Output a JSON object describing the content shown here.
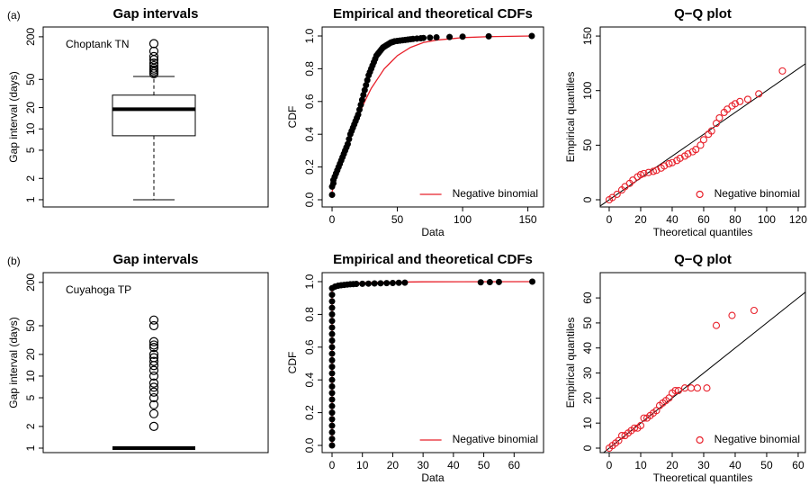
{
  "chart_data": [
    {
      "type": "box",
      "panel_label": "(a)",
      "title": "Gap intervals",
      "y_label": "Gap interval (days)",
      "annotation": "Choptank TN",
      "log_y": true,
      "ylim": [
        0.79,
        275
      ],
      "yticks": [
        1,
        2,
        5,
        10,
        20,
        50,
        200
      ],
      "color": "#000000",
      "stats": {
        "min": 1,
        "q1": 8,
        "median": 19,
        "q3": 30,
        "max": 55
      },
      "outliers": [
        160,
        125,
        105,
        95,
        85,
        78,
        72,
        68,
        64,
        60
      ]
    },
    {
      "type": "cdf",
      "title": "Empirical and theoretical CDFs",
      "x_label": "Data",
      "y_label": "CDF",
      "xlim": [
        -7.6,
        162
      ],
      "ylim": [
        -0.044,
        1.055
      ],
      "xticks": [
        0,
        50,
        100,
        150
      ],
      "yticks": [
        {
          "value": 0,
          "label": "0.0"
        },
        0.2,
        0.4,
        0.6,
        0.8,
        {
          "value": 1,
          "label": "1.0"
        }
      ],
      "legend": "bottomright",
      "empirical": {
        "color": "#000000",
        "x": [
          0,
          0,
          1,
          1,
          2,
          3,
          4,
          5,
          6,
          7,
          8,
          9,
          10,
          11,
          12,
          13,
          14,
          15,
          16,
          17,
          18,
          19,
          20,
          21,
          22,
          23,
          24,
          25,
          26,
          27,
          28,
          29,
          30,
          31,
          32,
          33,
          34,
          35,
          36,
          37,
          38,
          39,
          40,
          41,
          42,
          43,
          44,
          45,
          46,
          47,
          48,
          50,
          52,
          54,
          56,
          58,
          60,
          62,
          65,
          68,
          70,
          75,
          80,
          90,
          100,
          120,
          153
        ],
        "values": [
          0.03,
          0.08,
          0.1,
          0.12,
          0.14,
          0.16,
          0.18,
          0.2,
          0.22,
          0.24,
          0.26,
          0.28,
          0.3,
          0.32,
          0.34,
          0.37,
          0.4,
          0.42,
          0.44,
          0.46,
          0.48,
          0.5,
          0.52,
          0.55,
          0.58,
          0.61,
          0.64,
          0.67,
          0.7,
          0.73,
          0.76,
          0.78,
          0.8,
          0.82,
          0.84,
          0.86,
          0.88,
          0.89,
          0.9,
          0.91,
          0.92,
          0.93,
          0.935,
          0.94,
          0.945,
          0.95,
          0.955,
          0.96,
          0.962,
          0.965,
          0.968,
          0.97,
          0.972,
          0.974,
          0.976,
          0.978,
          0.98,
          0.982,
          0.984,
          0.986,
          0.988,
          0.99,
          0.992,
          0.994,
          0.996,
          0.998,
          1.0
        ]
      },
      "series": [
        {
          "name": "Negative binomial",
          "color": "#e8202a",
          "x": [
            0,
            5,
            10,
            15,
            20,
            25,
            30,
            35,
            40,
            45,
            50,
            60,
            70,
            80,
            100,
            120,
            153
          ],
          "values": [
            0.05,
            0.18,
            0.3,
            0.41,
            0.51,
            0.6,
            0.68,
            0.74,
            0.8,
            0.84,
            0.88,
            0.93,
            0.96,
            0.975,
            0.99,
            0.996,
            1.0
          ]
        }
      ]
    },
    {
      "type": "qq",
      "title": "Q−Q plot",
      "x_label": "Theoretical quantiles",
      "y_label": "Empirical quantiles",
      "xlim": [
        -5.7,
        124.6
      ],
      "ylim": [
        -6.6,
        158.3
      ],
      "xticks": [
        0,
        20,
        40,
        60,
        80,
        100,
        120
      ],
      "yticks": [
        0,
        50,
        100,
        150
      ],
      "legend": "bottomright",
      "series": [
        {
          "name": "Negative binomial",
          "color": "#e8202a",
          "x": [
            0,
            2,
            5,
            8,
            10,
            13,
            15,
            18,
            20,
            22,
            25,
            28,
            30,
            33,
            35,
            38,
            40,
            43,
            45,
            48,
            50,
            53,
            55,
            58,
            60,
            63,
            65,
            68,
            70,
            73,
            75,
            78,
            80,
            83,
            88,
            95,
            110
          ],
          "values": [
            0,
            2,
            5,
            9,
            12,
            15,
            18,
            21,
            23,
            24,
            25,
            26,
            27,
            29,
            31,
            33,
            34,
            36,
            38,
            40,
            42,
            44,
            46,
            50,
            55,
            60,
            63,
            70,
            75,
            80,
            83,
            86,
            88,
            90,
            92,
            97,
            118
          ]
        }
      ]
    },
    {
      "type": "box",
      "panel_label": "(b)",
      "title": "Gap intervals",
      "y_label": "Gap interval (days)",
      "annotation": "Cuyahoga TP",
      "log_y": true,
      "ylim": [
        0.866,
        273
      ],
      "yticks": [
        1,
        2,
        5,
        10,
        20,
        50,
        200
      ],
      "color": "#000000",
      "stats": {
        "min": 1,
        "q1": 1,
        "median": 1,
        "q3": 1,
        "max": 1
      },
      "outliers": [
        2,
        3,
        4,
        5,
        6,
        7,
        8,
        10,
        12,
        14,
        16,
        18,
        20,
        25,
        27,
        30,
        50,
        60
      ]
    },
    {
      "type": "cdf",
      "title": "Empirical and theoretical CDFs",
      "x_label": "Data",
      "y_label": "CDF",
      "xlim": [
        -3.26,
        69.7
      ],
      "ylim": [
        -0.044,
        1.055
      ],
      "xticks": [
        0,
        10,
        20,
        30,
        40,
        50,
        60
      ],
      "yticks": [
        {
          "value": 0,
          "label": "0.0"
        },
        0.2,
        0.4,
        0.6,
        0.8,
        {
          "value": 1,
          "label": "1.0"
        }
      ],
      "legend": "bottomright",
      "empirical": {
        "color": "#000000",
        "x": [
          0,
          0,
          0,
          0,
          0,
          0,
          0,
          0,
          0,
          0,
          0,
          0,
          0,
          0,
          0,
          0,
          0,
          0,
          0,
          0,
          0,
          0,
          0,
          0,
          0,
          1,
          2,
          3,
          4,
          5,
          6,
          7,
          8,
          10,
          12,
          14,
          16,
          18,
          20,
          22,
          24,
          49,
          52,
          55,
          66
        ],
        "values": [
          0,
          0.04,
          0.08,
          0.12,
          0.16,
          0.2,
          0.24,
          0.28,
          0.32,
          0.36,
          0.4,
          0.44,
          0.48,
          0.52,
          0.56,
          0.6,
          0.64,
          0.68,
          0.72,
          0.76,
          0.8,
          0.84,
          0.88,
          0.92,
          0.96,
          0.97,
          0.975,
          0.978,
          0.98,
          0.982,
          0.984,
          0.985,
          0.986,
          0.987,
          0.988,
          0.989,
          0.99,
          0.991,
          0.992,
          0.993,
          0.994,
          0.996,
          0.997,
          0.998,
          1.0
        ]
      },
      "series": [
        {
          "name": "Negative binomial",
          "color": "#e8202a",
          "x": [
            0,
            0,
            1,
            2,
            3,
            5,
            10,
            20,
            30,
            66
          ],
          "values": [
            0,
            0.96,
            0.975,
            0.982,
            0.986,
            0.99,
            0.994,
            0.997,
            0.999,
            1.0
          ]
        }
      ]
    },
    {
      "type": "qq",
      "title": "Q−Q plot",
      "x_label": "Theoretical quantiles",
      "y_label": "Empirical quantiles",
      "xlim": [
        -2.86,
        62.3
      ],
      "ylim": [
        -1.8,
        70.1
      ],
      "xticks": [
        0,
        10,
        20,
        30,
        40,
        50,
        60
      ],
      "yticks": [
        0,
        10,
        20,
        30,
        40,
        50,
        60
      ],
      "legend": "bottomright",
      "series": [
        {
          "name": "Negative binomial",
          "color": "#e8202a",
          "x": [
            0,
            1,
            2,
            3,
            4,
            5,
            6,
            7,
            8,
            9,
            10,
            11,
            12,
            13,
            14,
            15,
            16,
            17,
            18,
            19,
            20,
            21,
            22,
            24,
            26,
            28,
            31,
            34,
            39,
            46
          ],
          "values": [
            0,
            1,
            2,
            3,
            5,
            5,
            6,
            7,
            8,
            8,
            9,
            12,
            12,
            13,
            14,
            15,
            17,
            18,
            19,
            20,
            22,
            23,
            23,
            24,
            24,
            24,
            24,
            49,
            53,
            55
          ]
        }
      ]
    }
  ]
}
